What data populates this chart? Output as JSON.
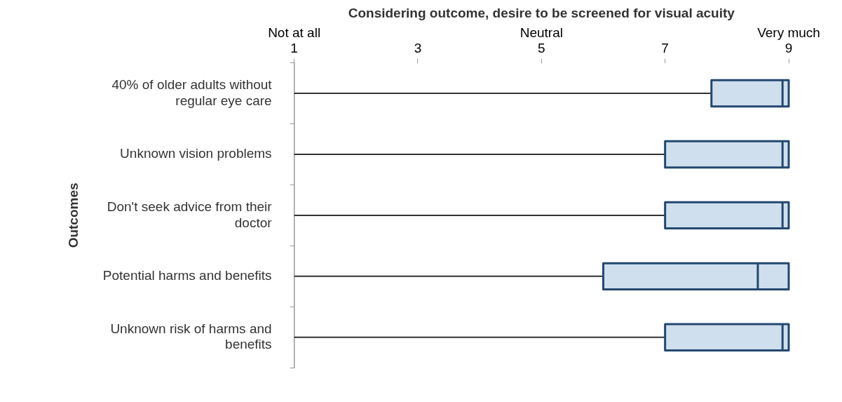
{
  "chart_data": {
    "type": "box",
    "orientation": "horizontal",
    "xlabel": "Considering outcome, desire to be screened for visual acuity",
    "ylabel": "Outcomes",
    "categories": [
      "40% of older adults without regular eye care",
      "Unknown vision problems",
      "Don't seek advice from their doctor",
      "Potential harms and benefits",
      "Unknown risk of harms and benefits"
    ],
    "series": [
      {
        "color": "#cfdfee",
        "boxes": [
          {
            "low": 1,
            "q1": 7.75,
            "median": 8.9,
            "q3": 9,
            "high": 9
          },
          {
            "low": 1,
            "q1": 7,
            "median": 8.9,
            "q3": 9,
            "high": 9
          },
          {
            "low": 1,
            "q1": 7,
            "median": 8.9,
            "q3": 9,
            "high": 9
          },
          {
            "low": 1,
            "q1": 6,
            "median": 8.5,
            "q3": 9,
            "high": 9
          },
          {
            "low": 1,
            "q1": 7,
            "median": 8.9,
            "q3": 9,
            "high": 9
          }
        ]
      }
    ],
    "xlim": [
      1,
      9
    ],
    "xticks": [
      1,
      3,
      5,
      7,
      9
    ],
    "annotations": [
      "Not at all",
      "Neutral",
      "Very much"
    ],
    "grid": false,
    "legend": false
  }
}
